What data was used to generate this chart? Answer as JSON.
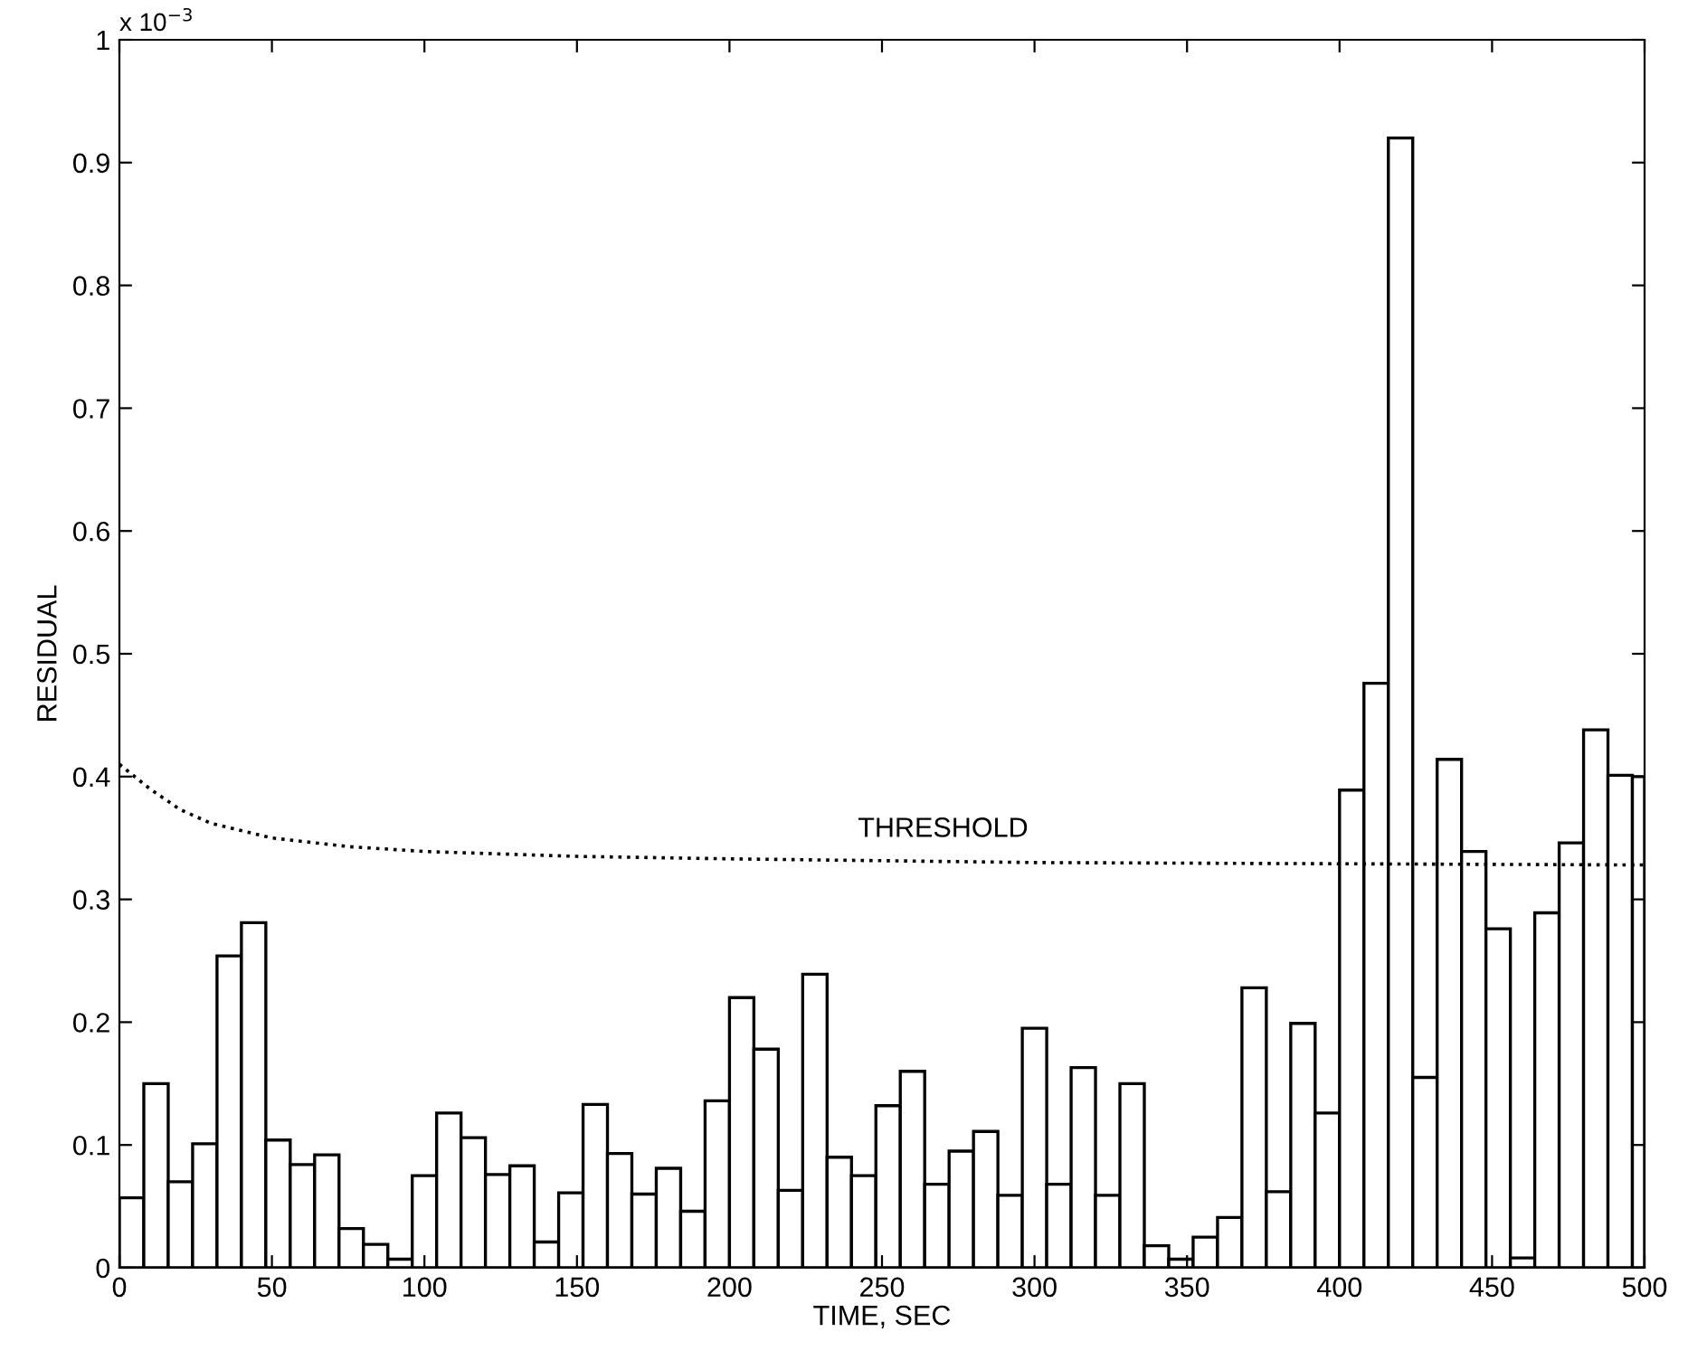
{
  "chart_data": {
    "type": "histogram",
    "xlabel": "TIME, SEC",
    "ylabel": "RESIDUAL",
    "bins": [
      0,
      8,
      16,
      24,
      32,
      40,
      48,
      56,
      64,
      72,
      80,
      88,
      96,
      104,
      112,
      120,
      128,
      136,
      144,
      152,
      160,
      168,
      176,
      184,
      192,
      200,
      208,
      216,
      224,
      232,
      240,
      248,
      256,
      264,
      272,
      280,
      288,
      296,
      304,
      312,
      320,
      328,
      336,
      344,
      352,
      360,
      368,
      376,
      384,
      392,
      400,
      408,
      416,
      424,
      432,
      440,
      448,
      456,
      464,
      472,
      480,
      488,
      496,
      500
    ],
    "values": [
      0.057,
      0.15,
      0.07,
      0.101,
      0.254,
      0.281,
      0.104,
      0.084,
      0.092,
      0.032,
      0.019,
      0.007,
      0.075,
      0.126,
      0.106,
      0.076,
      0.083,
      0.021,
      0.061,
      0.133,
      0.093,
      0.06,
      0.081,
      0.046,
      0.136,
      0.22,
      0.178,
      0.063,
      0.239,
      0.09,
      0.075,
      0.132,
      0.16,
      0.068,
      0.095,
      0.111,
      0.059,
      0.195,
      0.068,
      0.163,
      0.059,
      0.15,
      0.018,
      0.007,
      0.025,
      0.041,
      0.228,
      0.062,
      0.199,
      0.126,
      0.389,
      0.476,
      0.92,
      0.155,
      0.414,
      0.339,
      0.276,
      0.008,
      0.289,
      0.346,
      0.438,
      0.401,
      0.4
    ],
    "color": "#ffffff",
    "series": [
      {
        "type": "line",
        "color": "#000000",
        "line_style": "dotted",
        "x": [
          0,
          10,
          20,
          30,
          50,
          75,
          100,
          150,
          200,
          300,
          400,
          500
        ],
        "values": [
          0.41,
          0.39,
          0.373,
          0.362,
          0.35,
          0.343,
          0.339,
          0.335,
          0.333,
          0.33,
          0.329,
          0.328
        ]
      }
    ],
    "annotations": [
      {
        "text": "THRESHOLD",
        "x": 270,
        "y": 0.334
      },
      "x 10$^{−3}$"
    ],
    "xlim": [
      0,
      500
    ],
    "ylim": [
      0,
      1
    ],
    "xticks": [
      0,
      50,
      100,
      150,
      200,
      250,
      300,
      350,
      400,
      450,
      500
    ],
    "yticks": [
      0,
      0.1,
      0.2,
      0.3,
      0.4,
      0.5,
      0.6,
      0.7,
      0.8,
      0.9,
      1
    ],
    "grid": false
  }
}
